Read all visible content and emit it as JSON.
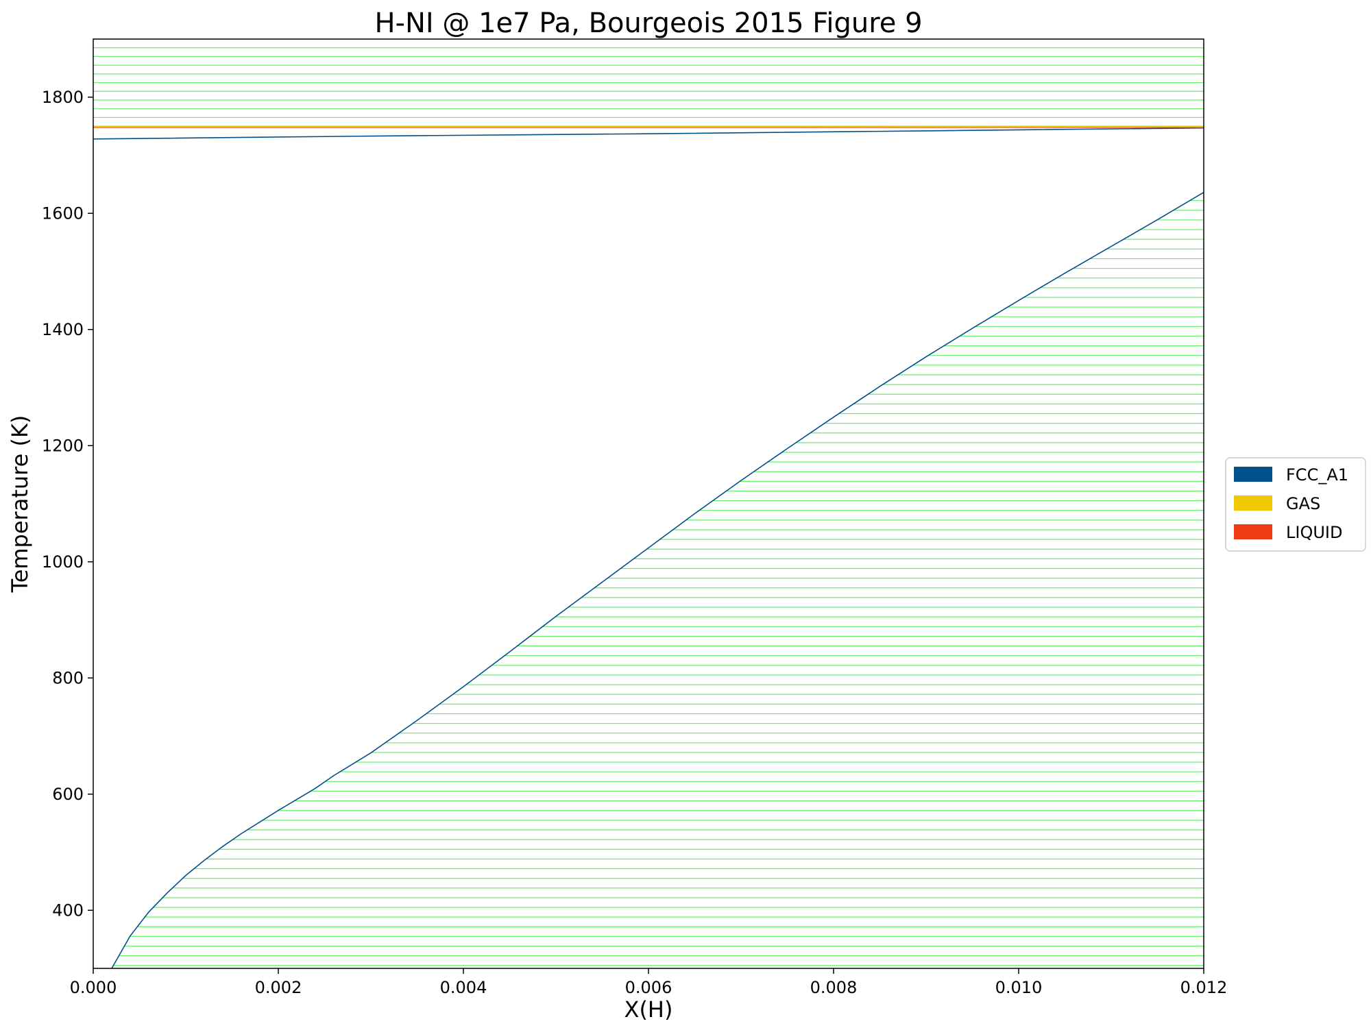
{
  "chart_data": {
    "type": "line",
    "title": "H-NI @ 1e7 Pa, Bourgeois 2015 Figure 9",
    "xlabel": "X(H)",
    "ylabel": "Temperature (K)",
    "xlim": [
      0,
      0.012
    ],
    "ylim": [
      300,
      1900
    ],
    "x_ticks": [
      0,
      0.002,
      0.004,
      0.006,
      0.008,
      0.01,
      0.012
    ],
    "x_tick_labels": [
      "0.000",
      "0.002",
      "0.004",
      "0.006",
      "0.008",
      "0.010",
      "0.012"
    ],
    "y_ticks": [
      400,
      600,
      800,
      1000,
      1200,
      1400,
      1600,
      1800
    ],
    "y_tick_labels": [
      "400",
      "600",
      "800",
      "1000",
      "1200",
      "1400",
      "1600",
      "1800"
    ],
    "grid": false,
    "legend_position": "right",
    "legend": [
      {
        "label": "FCC_A1",
        "color": "#00508c"
      },
      {
        "label": "GAS",
        "color": "#f0c800"
      },
      {
        "label": "LIQUID",
        "color": "#f03c14"
      }
    ],
    "tieline_color": "#66ee66",
    "series": [
      {
        "name": "FCC_A1",
        "color": "#00508c",
        "role": "FCC_A1 solvus (FCC_A1 + GAS boundary)",
        "x": [
          0.0002,
          0.0004,
          0.0006,
          0.0008,
          0.001,
          0.0012,
          0.0014,
          0.0016,
          0.0018,
          0.002,
          0.0022,
          0.0024,
          0.0026,
          0.003,
          0.0035,
          0.004,
          0.0045,
          0.005,
          0.0055,
          0.006,
          0.0065,
          0.007,
          0.0075,
          0.008,
          0.0085,
          0.009,
          0.0095,
          0.01,
          0.0105,
          0.011,
          0.0115,
          0.012
        ],
        "y": [
          300,
          356,
          397,
          430,
          460,
          486,
          510,
          532,
          552,
          572,
          591,
          610,
          632,
          671,
          727,
          785,
          845,
          906,
          965,
          1024,
          1083,
          1140,
          1195,
          1249,
          1302,
          1353,
          1402,
          1450,
          1497,
          1543,
          1589,
          1636
        ]
      },
      {
        "name": "FCC_A1",
        "color": "#00508c",
        "role": "FCC_A1 solidus",
        "x": [
          0.0,
          0.003,
          0.006,
          0.009,
          0.012
        ],
        "y": [
          1728,
          1733,
          1737,
          1742,
          1747
        ]
      },
      {
        "name": "LIQUID",
        "color": "#f03c14",
        "role": "LIQUID boundary",
        "x": [
          0.0,
          0.012
        ],
        "y": [
          1748,
          1748
        ]
      },
      {
        "name": "GAS",
        "color": "#f0c800",
        "role": "GAS boundary",
        "x": [
          0.0,
          0.012
        ],
        "y": [
          1749,
          1749
        ]
      }
    ],
    "tielines": {
      "lower_region": {
        "y_start": 305,
        "y_end": 1636,
        "step": 16.67
      },
      "upper_region": {
        "y_start": 1750,
        "y_end": 1900,
        "step": 15
      }
    }
  }
}
